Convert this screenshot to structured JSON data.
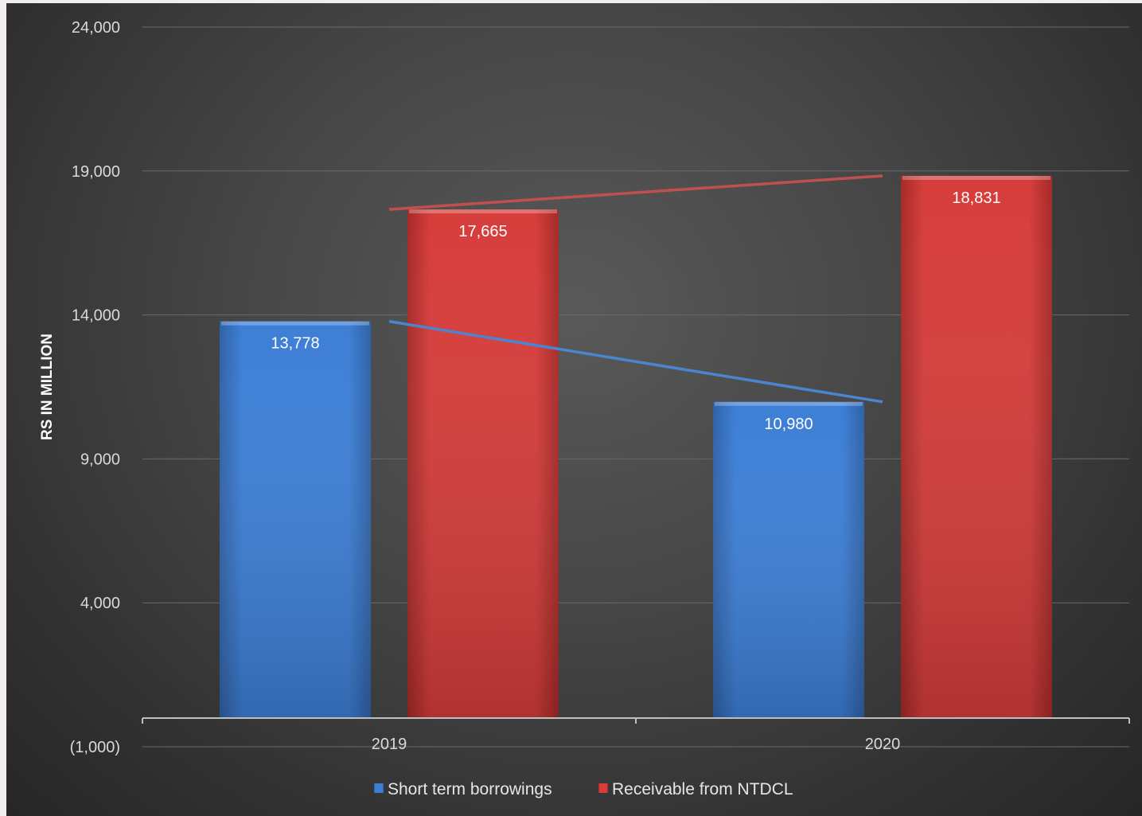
{
  "chart_data": {
    "type": "bar",
    "title": "",
    "xlabel": "",
    "ylabel": "RS IN MILLION",
    "categories": [
      "2019",
      "2020"
    ],
    "series": [
      {
        "name": "Short term borrowings",
        "values": [
          13778,
          10980
        ],
        "labels": [
          "13,778",
          "10,980"
        ],
        "color": "#3d7fd6",
        "trendline_color": "#4a86d0"
      },
      {
        "name": "Receivable from NTDCL",
        "values": [
          17665,
          18831
        ],
        "labels": [
          "17,665",
          "18,831"
        ],
        "color": "#d63d3b",
        "trendline_color": "#c0504d"
      }
    ],
    "ylim": [
      -1000,
      24000
    ],
    "yticks": [
      -1000,
      4000,
      9000,
      14000,
      19000,
      24000
    ],
    "ytick_labels": [
      "(1,000)",
      "4,000",
      "9,000",
      "14,000",
      "19,000",
      "24,000"
    ],
    "trendlines": true,
    "grid": true,
    "legend_position": "bottom",
    "background": "#3a3a3a"
  }
}
